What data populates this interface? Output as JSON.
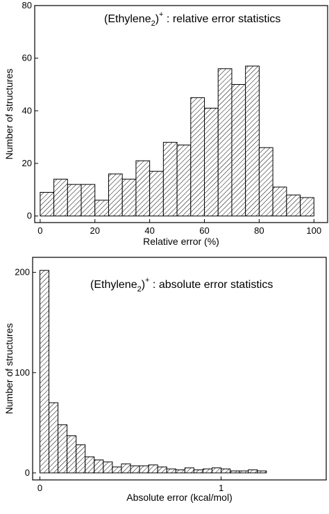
{
  "charts": [
    {
      "type": "histogram",
      "title": {
        "base": "(Ethylene",
        "sub": "2",
        "close": ")",
        "sup": "+",
        "rest": " : relative error statistics"
      },
      "xlabel": "Relative error (%)",
      "ylabel": "Number of structures",
      "bins": [
        0,
        5,
        10,
        15,
        20,
        25,
        30,
        35,
        40,
        45,
        50,
        55,
        60,
        65,
        70,
        75,
        80,
        85,
        90,
        95,
        100
      ],
      "values": [
        9,
        14,
        12,
        12,
        6,
        16,
        14,
        21,
        17,
        28,
        27,
        45,
        41,
        56,
        50,
        57,
        26,
        11,
        8,
        7
      ],
      "xlim": [
        -2,
        105
      ],
      "ylim": [
        -2.5,
        80
      ],
      "xticks": [
        0,
        20,
        40,
        60,
        80,
        100
      ],
      "yticks": [
        0,
        20,
        40,
        60,
        80
      ]
    },
    {
      "type": "histogram",
      "title": {
        "base": "(Ethylene",
        "sub": "2",
        "close": ")",
        "sup": "+",
        "rest": " : absolute error statistics"
      },
      "xlabel": "Absolute error (kcal/mol)",
      "ylabel": "Number of structures",
      "bins": [
        0,
        0.05,
        0.1,
        0.15,
        0.2,
        0.25,
        0.3,
        0.35,
        0.4,
        0.45,
        0.5,
        0.55,
        0.6,
        0.65,
        0.7,
        0.75,
        0.8,
        0.85,
        0.9,
        0.95,
        1,
        1.05,
        1.1,
        1.15,
        1.2,
        1.25
      ],
      "values": [
        202,
        70,
        48,
        37,
        28,
        16,
        13,
        11,
        6,
        9,
        7,
        7,
        8,
        6,
        4,
        3,
        5,
        3,
        4,
        5,
        4,
        2,
        2,
        3,
        2
      ],
      "xlim": [
        -0.04,
        1.58
      ],
      "ylim": [
        -7,
        215
      ],
      "xticks": [
        0,
        1
      ],
      "yticks": [
        0,
        100,
        200
      ]
    }
  ]
}
